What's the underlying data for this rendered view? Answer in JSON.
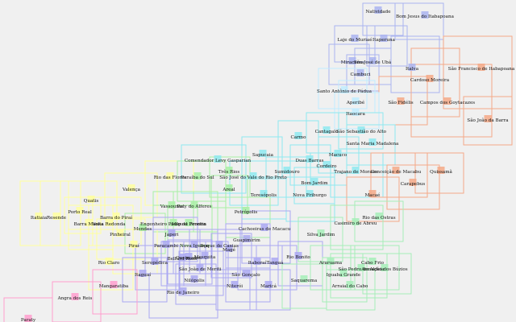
{
  "diagram": {
    "kind": "municipality-bounding-box-map",
    "region_colors": {
      "north": "#aab4f0",
      "northwest": "#c0ecff",
      "east": "#f5a987",
      "center": "#8ee9f0",
      "serrana": "#a8f0a4",
      "south_central": "#ffff9e",
      "metro": "#aaa8f2",
      "lakes": "#a6eeb8",
      "south_coast": "#ff9ece"
    },
    "municipalities": [
      {
        "name": "Natividade",
        "region": "north"
      },
      {
        "name": "Bom Jesus do Itabapoana",
        "region": "north"
      },
      {
        "name": "Laje do Muriaé",
        "region": "north"
      },
      {
        "name": "Itaperuna",
        "region": "north"
      },
      {
        "name": "Miracema",
        "region": "north"
      },
      {
        "name": "São José de Ubá",
        "region": "north"
      },
      {
        "name": "Cambuci",
        "region": "north"
      },
      {
        "name": "Italva",
        "region": "north"
      },
      {
        "name": "Cardoso Moreira",
        "region": "east"
      },
      {
        "name": "São Francisco de Itabapoana",
        "region": "east"
      },
      {
        "name": "Santo Antônio de Pádua",
        "region": "northwest"
      },
      {
        "name": "Aperibé",
        "region": "northwest"
      },
      {
        "name": "São Fidélis",
        "region": "east"
      },
      {
        "name": "Campos dos Goytacazes",
        "region": "east"
      },
      {
        "name": "São João da Barra",
        "region": "east"
      },
      {
        "name": "Itaocara",
        "region": "northwest"
      },
      {
        "name": "Cantagalo",
        "region": "center"
      },
      {
        "name": "São Sebastião do Alto",
        "region": "center"
      },
      {
        "name": "Carmo",
        "region": "center"
      },
      {
        "name": "Santa Maria Madalena",
        "region": "center"
      },
      {
        "name": "Sapucaia",
        "region": "center"
      },
      {
        "name": "Macuco",
        "region": "center"
      },
      {
        "name": "Comendador Levy Gasparian",
        "region": "center"
      },
      {
        "name": "Duas Barras",
        "region": "center"
      },
      {
        "name": "Cordeiro",
        "region": "center"
      },
      {
        "name": "Três Rios",
        "region": "serrana"
      },
      {
        "name": "Rio das Flores",
        "region": "south_central"
      },
      {
        "name": "Paraíba do Sul",
        "region": "serrana"
      },
      {
        "name": "São José do Vale do Rio Preto",
        "region": "center"
      },
      {
        "name": "Sumidouro",
        "region": "center"
      },
      {
        "name": "Trajano de Moraes",
        "region": "center"
      },
      {
        "name": "Conceição de Macabu",
        "region": "east"
      },
      {
        "name": "Quissamã",
        "region": "east"
      },
      {
        "name": "Areal",
        "region": "serrana"
      },
      {
        "name": "Bom Jardim",
        "region": "center"
      },
      {
        "name": "Carapebus",
        "region": "east"
      },
      {
        "name": "Valença",
        "region": "south_central"
      },
      {
        "name": "Quatis",
        "region": "south_central"
      },
      {
        "name": "Teresópolis",
        "region": "center"
      },
      {
        "name": "Nova Friburgo",
        "region": "center"
      },
      {
        "name": "Macaé",
        "region": "east"
      },
      {
        "name": "Vassouras",
        "region": "serrana"
      },
      {
        "name": "Paty do Alferes",
        "region": "serrana"
      },
      {
        "name": "Petrópolis",
        "region": "serrana"
      },
      {
        "name": "Itatiaia",
        "region": "south_central"
      },
      {
        "name": "Resende",
        "region": "south_central"
      },
      {
        "name": "Porto Real",
        "region": "south_central"
      },
      {
        "name": "Barra do Piraí",
        "region": "south_central"
      },
      {
        "name": "Barra Mansa",
        "region": "south_central"
      },
      {
        "name": "Volta Redonda",
        "region": "south_central"
      },
      {
        "name": "Mendes",
        "region": "serrana"
      },
      {
        "name": "Engenheiro Paulo de Frontin",
        "region": "serrana"
      },
      {
        "name": "Miguel Pereira",
        "region": "serrana"
      },
      {
        "name": "Rio das Ostras",
        "region": "lakes"
      },
      {
        "name": "Casimiro de Abreu",
        "region": "lakes"
      },
      {
        "name": "Pinheiral",
        "region": "south_central"
      },
      {
        "name": "Cachoeiras de Macacu",
        "region": "metro"
      },
      {
        "name": "Japeri",
        "region": "metro"
      },
      {
        "name": "Silva Jardim",
        "region": "lakes"
      },
      {
        "name": "Piraí",
        "region": "south_central"
      },
      {
        "name": "Paracambi",
        "region": "metro"
      },
      {
        "name": "Nova Iguaçu",
        "region": "metro"
      },
      {
        "name": "Duque de Caxias",
        "region": "metro"
      },
      {
        "name": "Magé",
        "region": "metro"
      },
      {
        "name": "Guapimirim",
        "region": "metro"
      },
      {
        "name": "Queimados",
        "region": "metro"
      },
      {
        "name": "Belford Roxo",
        "region": "metro"
      },
      {
        "name": "Rio Claro",
        "region": "south_central"
      },
      {
        "name": "Seropédica",
        "region": "metro"
      },
      {
        "name": "Mesquita",
        "region": "metro"
      },
      {
        "name": "Itaboraí",
        "region": "metro"
      },
      {
        "name": "Tanguá",
        "region": "metro"
      },
      {
        "name": "Rio Bonito",
        "region": "metro"
      },
      {
        "name": "Araruama",
        "region": "lakes"
      },
      {
        "name": "Cabo Frio",
        "region": "lakes"
      },
      {
        "name": "São João de Meriti",
        "region": "metro"
      },
      {
        "name": "São Pedro da Aldeia",
        "region": "lakes"
      },
      {
        "name": "Armação dos Búzios",
        "region": "lakes"
      },
      {
        "name": "Iguaba Grande",
        "region": "lakes"
      },
      {
        "name": "Itaguaí",
        "region": "metro"
      },
      {
        "name": "São Gonçalo",
        "region": "metro"
      },
      {
        "name": "Mangaratiba",
        "region": "south_coast"
      },
      {
        "name": "Nilópolis",
        "region": "metro"
      },
      {
        "name": "Niterói",
        "region": "metro"
      },
      {
        "name": "Maricá",
        "region": "metro"
      },
      {
        "name": "Saquarema",
        "region": "lakes"
      },
      {
        "name": "Arraial do Cabo",
        "region": "lakes"
      },
      {
        "name": "Rio de Janeiro",
        "region": "metro"
      },
      {
        "name": "Angra dos Reis",
        "region": "south_coast"
      },
      {
        "name": "Paraty",
        "region": "south_coast"
      }
    ]
  }
}
